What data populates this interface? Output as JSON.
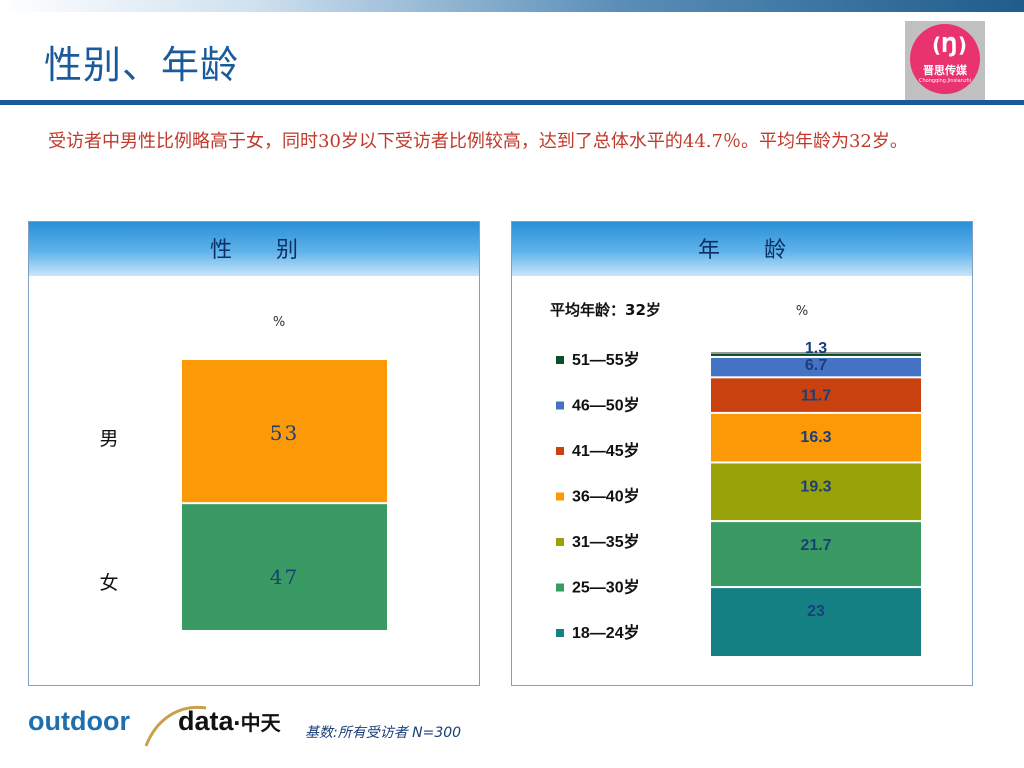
{
  "header": {
    "title": "性别、年龄",
    "logo_text": "晋思传媒",
    "logo_subtext": "Chongqing Jinsianzhi"
  },
  "summary": "受访者中男性比例略高于女，同时30岁以下受访者比例较高，达到了总体水平的44.7％。平均年龄为32岁。",
  "chart_data": [
    {
      "type": "bar",
      "title": "性　　别",
      "unit": "%",
      "stacked": true,
      "categories": [
        "男",
        "女"
      ],
      "values": [
        53,
        47
      ],
      "colors": [
        "#fb9a06",
        "#3a9a63"
      ]
    },
    {
      "type": "bar",
      "title": "年　　龄",
      "subtitle": "平均年龄：32岁",
      "unit": "%",
      "stacked": true,
      "categories": [
        "51—55岁",
        "46—50岁",
        "41—45岁",
        "36—40岁",
        "31—35岁",
        "25—30岁",
        "18—24岁"
      ],
      "values": [
        1.3,
        6.7,
        11.7,
        16.3,
        19.3,
        21.7,
        23
      ],
      "labels": [
        "1.3",
        "6.7",
        "11.7",
        "16.3",
        "19.3",
        "21.7",
        "23"
      ],
      "colors": [
        "#0b4d2b",
        "#4472c4",
        "#c9410f",
        "#fb9a06",
        "#9aa20a",
        "#3a9a63",
        "#168185"
      ]
    }
  ],
  "footer": {
    "brand": "outdoor data·中天",
    "brand_outdoor": "outdoor",
    "brand_data": "data",
    "brand_cn": "·中天",
    "base_note": "基数:所有受访者   N=300"
  }
}
